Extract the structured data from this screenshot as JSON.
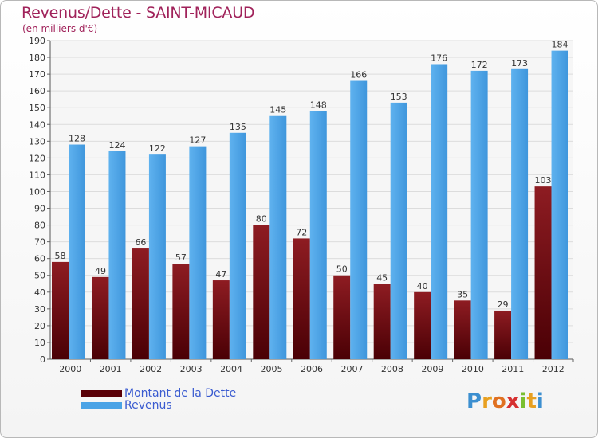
{
  "title": "Revenus/Dette - SAINT-MICAUD",
  "subtitle": "(en milliers d'€)",
  "legend": {
    "items": [
      {
        "label": "Montant de la Dette",
        "color": "#7a0a10"
      },
      {
        "label": "Revenus",
        "color": "#4aa3e6"
      }
    ]
  },
  "logo": {
    "text": "Proxiti",
    "letters": [
      {
        "ch": "P",
        "color": "#3c8fd0"
      },
      {
        "ch": "r",
        "color": "#e8a020"
      },
      {
        "ch": "o",
        "color": "#e07020"
      },
      {
        "ch": "x",
        "color": "#d63030"
      },
      {
        "ch": "i",
        "color": "#7abf30"
      },
      {
        "ch": "t",
        "color": "#e8a020"
      },
      {
        "ch": "i",
        "color": "#3c8fd0"
      }
    ]
  },
  "chart_data": {
    "type": "bar",
    "categories": [
      "2000",
      "2001",
      "2002",
      "2003",
      "2004",
      "2005",
      "2006",
      "2007",
      "2008",
      "2009",
      "2010",
      "2011",
      "2012"
    ],
    "series": [
      {
        "name": "Montant de la Dette",
        "color": "#7a0a10",
        "values": [
          58,
          49,
          66,
          57,
          47,
          80,
          72,
          50,
          45,
          40,
          35,
          29,
          103
        ]
      },
      {
        "name": "Revenus",
        "color": "#4aa3e6",
        "values": [
          128,
          124,
          122,
          127,
          135,
          145,
          148,
          166,
          153,
          176,
          172,
          173,
          184
        ]
      }
    ],
    "ylim": [
      0,
      190
    ],
    "yticks": [
      0,
      10,
      20,
      30,
      40,
      50,
      60,
      70,
      80,
      90,
      100,
      110,
      120,
      130,
      140,
      150,
      160,
      170,
      180,
      190
    ],
    "grid": true,
    "legend_position": "bottom-left"
  }
}
